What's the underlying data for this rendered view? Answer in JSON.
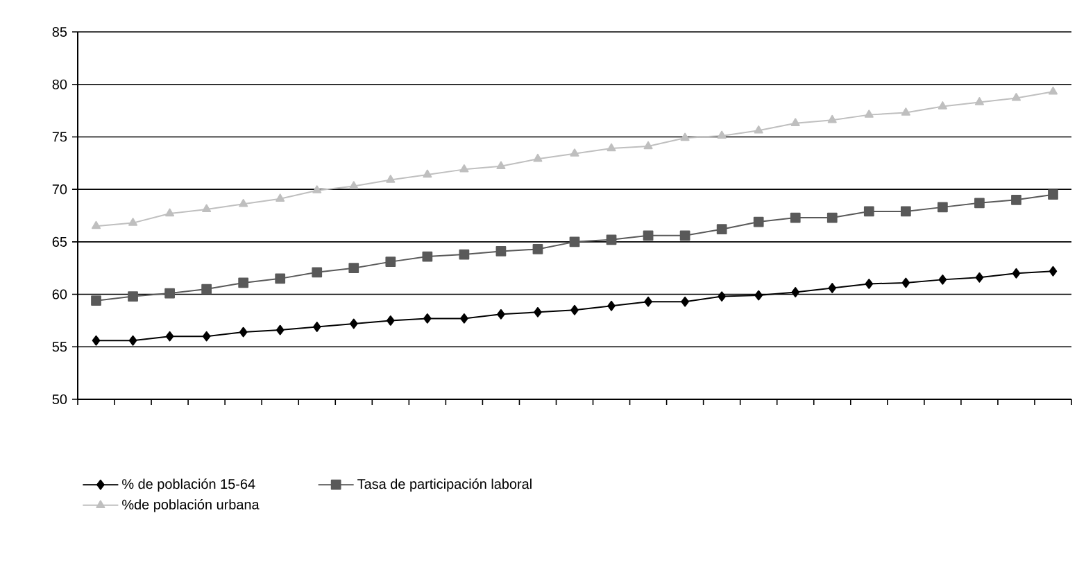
{
  "chart_data": {
    "type": "line",
    "categories": [
      null,
      null,
      null,
      null,
      null,
      null,
      null,
      null,
      null,
      null,
      null,
      null,
      null,
      null,
      null,
      null,
      null,
      null,
      null,
      null,
      null,
      null,
      null,
      null,
      null,
      null,
      null
    ],
    "series": [
      {
        "name": "% de población 15-64",
        "color": "#000000",
        "marker": "diamond",
        "values": [
          55.6,
          55.6,
          56,
          56,
          56.4,
          56.6,
          56.9,
          57.2,
          57.5,
          57.7,
          57.7,
          58.1,
          58.3,
          58.5,
          58.9,
          59.3,
          59.3,
          59.8,
          59.9,
          60.2,
          60.6,
          61,
          61.1,
          61.4,
          61.6,
          62,
          62.2
        ]
      },
      {
        "name": "Tasa de participación laboral",
        "color": "#595959",
        "marker": "square",
        "values": [
          59.4,
          59.8,
          60.1,
          60.5,
          61.1,
          61.5,
          62.1,
          62.5,
          63.1,
          63.6,
          63.8,
          64.1,
          64.3,
          65,
          65.2,
          65.6,
          65.6,
          66.2,
          66.9,
          67.3,
          67.3,
          67.9,
          67.9,
          68.3,
          68.7,
          69,
          69.5
        ]
      },
      {
        "name": "%de población urbana",
        "color": "#bfbfbf",
        "marker": "triangle",
        "values": [
          66.5,
          66.8,
          67.7,
          68.1,
          68.6,
          69.1,
          69.9,
          70.3,
          70.9,
          71.4,
          71.9,
          72.2,
          72.9,
          73.4,
          73.9,
          74.1,
          74.9,
          75.1,
          75.6,
          76.3,
          76.6,
          77.1,
          77.3,
          77.9,
          78.3,
          78.7,
          79.3
        ]
      }
    ],
    "ylim": [
      50,
      85
    ],
    "yticks": [
      50,
      55,
      60,
      65,
      70,
      75,
      80,
      85
    ],
    "grid": "y",
    "legend": "bottom",
    "tick_labels": "y",
    "line_style": "solid"
  }
}
